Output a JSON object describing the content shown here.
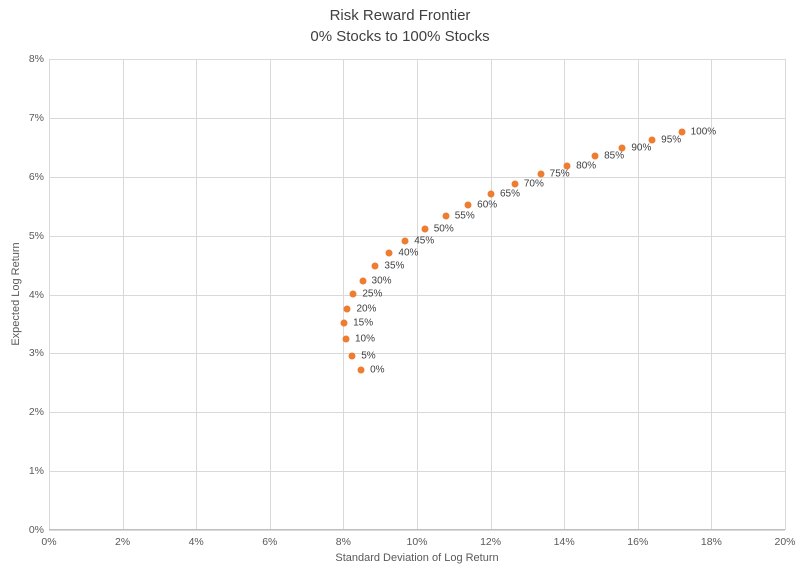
{
  "title": {
    "line1": "Risk Reward Frontier",
    "line2": "0% Stocks to 100% Stocks"
  },
  "chart_data": {
    "type": "scatter",
    "title": "Risk Reward Frontier — 0% Stocks to 100% Stocks",
    "xlabel": "Standard Deviation of Log Return",
    "ylabel": "Expected Log Return",
    "xlim": [
      0,
      20
    ],
    "ylim": [
      0,
      8
    ],
    "grid": true,
    "legend": "none",
    "marker_color": "#ED7D31",
    "gridline_color": "#D9D9D9",
    "axis_line_color": "#BFBFBF",
    "x_ticks": [
      {
        "v": 0,
        "label": "0%"
      },
      {
        "v": 2,
        "label": "2%"
      },
      {
        "v": 4,
        "label": "4%"
      },
      {
        "v": 6,
        "label": "6%"
      },
      {
        "v": 8,
        "label": "8%"
      },
      {
        "v": 10,
        "label": "10%"
      },
      {
        "v": 12,
        "label": "12%"
      },
      {
        "v": 14,
        "label": "14%"
      },
      {
        "v": 16,
        "label": "16%"
      },
      {
        "v": 18,
        "label": "18%"
      },
      {
        "v": 20,
        "label": "20%"
      }
    ],
    "y_ticks": [
      {
        "v": 0,
        "label": "0%"
      },
      {
        "v": 1,
        "label": "1%"
      },
      {
        "v": 2,
        "label": "2%"
      },
      {
        "v": 3,
        "label": "3%"
      },
      {
        "v": 4,
        "label": "4%"
      },
      {
        "v": 5,
        "label": "5%"
      },
      {
        "v": 6,
        "label": "6%"
      },
      {
        "v": 7,
        "label": "7%"
      },
      {
        "v": 8,
        "label": "8%"
      }
    ],
    "points": [
      {
        "label": "0%",
        "x": 8.48,
        "y": 2.71
      },
      {
        "label": "5%",
        "x": 8.24,
        "y": 2.95
      },
      {
        "label": "10%",
        "x": 8.07,
        "y": 3.24
      },
      {
        "label": "15%",
        "x": 8.02,
        "y": 3.51
      },
      {
        "label": "20%",
        "x": 8.11,
        "y": 3.75
      },
      {
        "label": "25%",
        "x": 8.27,
        "y": 4.01
      },
      {
        "label": "30%",
        "x": 8.52,
        "y": 4.23
      },
      {
        "label": "35%",
        "x": 8.87,
        "y": 4.49
      },
      {
        "label": "40%",
        "x": 9.25,
        "y": 4.7
      },
      {
        "label": "45%",
        "x": 9.68,
        "y": 4.91
      },
      {
        "label": "50%",
        "x": 10.21,
        "y": 5.12
      },
      {
        "label": "55%",
        "x": 10.78,
        "y": 5.33
      },
      {
        "label": "60%",
        "x": 11.39,
        "y": 5.52
      },
      {
        "label": "65%",
        "x": 12.01,
        "y": 5.7
      },
      {
        "label": "70%",
        "x": 12.66,
        "y": 5.88
      },
      {
        "label": "75%",
        "x": 13.36,
        "y": 6.04
      },
      {
        "label": "80%",
        "x": 14.08,
        "y": 6.19
      },
      {
        "label": "85%",
        "x": 14.84,
        "y": 6.35
      },
      {
        "label": "90%",
        "x": 15.58,
        "y": 6.49
      },
      {
        "label": "95%",
        "x": 16.39,
        "y": 6.63
      },
      {
        "label": "100%",
        "x": 17.19,
        "y": 6.76
      }
    ]
  }
}
